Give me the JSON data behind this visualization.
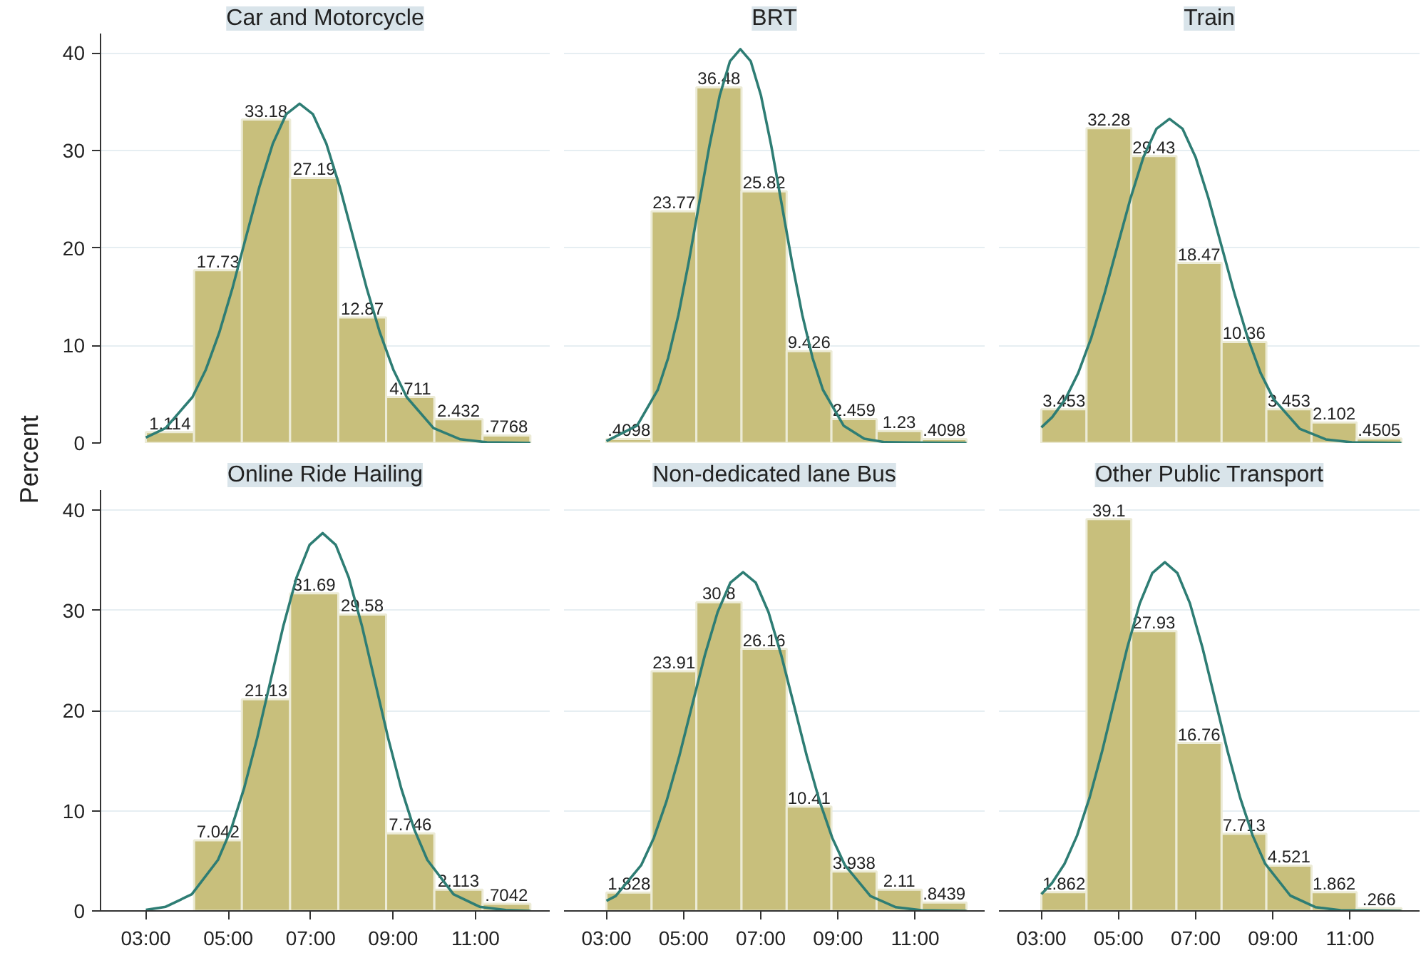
{
  "chart_data": [
    {
      "type": "histogram",
      "title": "Car and Motorcycle",
      "ylabel": "Percent",
      "bins": [
        3,
        4.17,
        5.33,
        6.5,
        7.67,
        8.83,
        10,
        11.17,
        12.33
      ],
      "values": [
        1.114,
        17.73,
        33.18,
        27.19,
        12.87,
        4.711,
        2.432,
        0.7768
      ],
      "value_labels": [
        "1.114",
        "17.73",
        "33.18",
        "27.19",
        "12.87",
        "4.711",
        "2.432",
        ".7768"
      ],
      "color": "#c8bf7c",
      "series": [
        {
          "type": "line",
          "color": "#2e7d74",
          "x": [
            3.0,
            3.48,
            4.13,
            4.455,
            4.78,
            5.105,
            5.43,
            5.755,
            6.08,
            6.405,
            6.73,
            7.055,
            7.38,
            7.705,
            8.03,
            8.355,
            8.68,
            9.005,
            9.33,
            9.98,
            10.63,
            11.28,
            12.33
          ],
          "values": [
            0.56,
            1.53,
            4.7,
            7.52,
            11.31,
            15.94,
            21.12,
            26.27,
            30.69,
            33.72,
            34.8,
            33.72,
            30.69,
            26.27,
            21.12,
            15.94,
            11.31,
            7.52,
            4.7,
            1.53,
            0.38,
            0.07,
            0
          ]
        }
      ],
      "xlim": [
        1.9,
        12.8
      ],
      "ylim": [
        0,
        42
      ],
      "yticks": [
        0,
        10,
        20,
        30,
        40
      ],
      "grid": "y",
      "tick_labels": "y"
    },
    {
      "type": "histogram",
      "title": "BRT",
      "bins": [
        3,
        4.17,
        5.33,
        6.5,
        7.67,
        8.83,
        10,
        11.17,
        12.33
      ],
      "values": [
        0.4098,
        23.77,
        36.48,
        25.82,
        9.426,
        2.459,
        1.23,
        0.4098
      ],
      "value_labels": [
        ".4098",
        "23.77",
        "36.48",
        "25.82",
        "9.426",
        "2.459",
        "1.23",
        ".4098"
      ],
      "color": "#c8bf7c",
      "series": [
        {
          "type": "line",
          "color": "#2e7d74",
          "x": [
            3.0,
            3.795,
            4.33,
            4.6,
            4.865,
            5.13,
            5.4,
            5.67,
            5.935,
            6.2,
            6.47,
            6.74,
            7.005,
            7.27,
            7.54,
            7.81,
            8.075,
            8.34,
            8.61,
            9.145,
            9.68,
            10.22,
            12.33
          ],
          "values": [
            0.2,
            1.78,
            5.45,
            8.73,
            13.13,
            18.5,
            24.52,
            30.5,
            35.63,
            39.15,
            40.4,
            39.15,
            35.63,
            30.5,
            24.52,
            18.5,
            13.13,
            8.73,
            5.45,
            1.78,
            0.44,
            0.08,
            0
          ]
        }
      ],
      "xlim": [
        1.9,
        12.8
      ],
      "yticks": [
        0,
        10,
        20,
        30,
        40
      ],
      "grid": "y",
      "tick_labels": false
    },
    {
      "type": "histogram",
      "title": "Train",
      "bins": [
        3,
        4.17,
        5.33,
        6.5,
        7.67,
        8.83,
        10,
        11.17,
        12.33
      ],
      "values": [
        3.453,
        32.28,
        29.43,
        18.47,
        10.36,
        3.453,
        2.102,
        0.4505
      ],
      "value_labels": [
        "3.453",
        "32.28",
        "29.43",
        "18.47",
        "10.36",
        "3.453",
        "2.102",
        ".4505"
      ],
      "color": "#c8bf7c",
      "series": [
        {
          "type": "line",
          "color": "#2e7d74",
          "x": [
            3.0,
            3.28,
            3.62,
            3.955,
            4.295,
            4.63,
            4.97,
            5.31,
            5.645,
            5.98,
            6.32,
            6.66,
            6.995,
            7.33,
            7.67,
            8.01,
            8.345,
            8.68,
            9.02,
            9.695,
            10.37,
            11.045,
            12.33
          ],
          "values": [
            1.6,
            2.64,
            4.49,
            7.18,
            10.81,
            15.23,
            20.18,
            25.1,
            29.33,
            32.22,
            33.25,
            32.22,
            29.33,
            25.1,
            20.18,
            15.23,
            10.81,
            7.18,
            4.49,
            1.46,
            0.37,
            0.07,
            0
          ]
        }
      ],
      "xlim": [
        1.9,
        12.8
      ],
      "yticks": [
        0,
        10,
        20,
        30,
        40
      ],
      "grid": "y",
      "tick_labels": false
    },
    {
      "type": "histogram",
      "title": "Online Ride Hailing",
      "bins": [
        4.17,
        5.33,
        6.5,
        7.67,
        8.83,
        10,
        11.17,
        12.33
      ],
      "values": [
        7.042,
        21.13,
        31.69,
        29.58,
        7.746,
        2.113,
        0.7042
      ],
      "value_labels": [
        "7.042",
        "21.13",
        "31.69",
        "29.58",
        "7.746",
        "2.113",
        ".7042"
      ],
      "color": "#c8bf7c",
      "series": [
        {
          "type": "line",
          "color": "#2e7d74",
          "x": [
            3.0,
            3.48,
            4.115,
            4.75,
            5.0675,
            5.385,
            5.7025,
            6.02,
            6.3375,
            6.655,
            6.9725,
            7.29,
            7.6075,
            7.925,
            8.2425,
            8.56,
            8.8775,
            9.195,
            9.5125,
            9.83,
            10.465,
            11.1,
            11.735,
            12.33
          ],
          "values": [
            0.1,
            0.41,
            1.66,
            5.09,
            8.14,
            12.25,
            17.27,
            22.88,
            28.46,
            33.25,
            36.53,
            37.7,
            36.53,
            33.25,
            28.46,
            22.88,
            17.27,
            12.25,
            8.14,
            5.09,
            1.66,
            0.41,
            0.08,
            0
          ]
        }
      ],
      "xlim": [
        1.9,
        12.8
      ],
      "ylim": [
        0,
        42
      ],
      "xticks": [
        {
          "value": 3,
          "label": "03:00"
        },
        {
          "value": 5,
          "label": "05:00"
        },
        {
          "value": 7,
          "label": "07:00"
        },
        {
          "value": 9,
          "label": "09:00"
        },
        {
          "value": 11,
          "label": "11:00"
        }
      ],
      "yticks": [
        0,
        10,
        20,
        30,
        40
      ],
      "grid": "y"
    },
    {
      "type": "histogram",
      "title": "Non-dedicated lane Bus",
      "bins": [
        3,
        4.17,
        5.33,
        6.5,
        7.67,
        8.83,
        10,
        11.17,
        12.33
      ],
      "values": [
        1.828,
        23.91,
        30.8,
        26.16,
        10.41,
        3.938,
        2.11,
        0.8439
      ],
      "value_labels": [
        "1.828",
        "23.91",
        "30.8",
        "26.16",
        "10.41",
        "3.938",
        "2.11",
        ".8439"
      ],
      "color": "#c8bf7c",
      "series": [
        {
          "type": "line",
          "color": "#2e7d74",
          "x": [
            3.0,
            3.24,
            3.9,
            4.23,
            4.56,
            4.89,
            5.22,
            5.55,
            5.88,
            6.21,
            6.54,
            6.87,
            7.2,
            7.53,
            7.86,
            8.19,
            8.52,
            8.85,
            9.18,
            9.84,
            10.5,
            11.16,
            12.33
          ],
          "values": [
            1.0,
            1.49,
            4.56,
            7.3,
            10.99,
            15.48,
            20.52,
            25.52,
            29.81,
            32.75,
            33.8,
            32.75,
            29.81,
            25.52,
            20.52,
            15.48,
            10.99,
            7.3,
            4.56,
            1.49,
            0.37,
            0.07,
            0
          ]
        }
      ],
      "xlim": [
        1.9,
        12.8
      ],
      "xticks": [
        {
          "value": 3,
          "label": "03:00"
        },
        {
          "value": 5,
          "label": "05:00"
        },
        {
          "value": 7,
          "label": "07:00"
        },
        {
          "value": 9,
          "label": "09:00"
        },
        {
          "value": 11,
          "label": "11:00"
        }
      ],
      "yticks": [
        0,
        10,
        20,
        30,
        40
      ],
      "grid": "y",
      "tick_labels": "x"
    },
    {
      "type": "histogram",
      "title": "Other Public Transport",
      "bins": [
        3,
        4.17,
        5.33,
        6.5,
        7.67,
        8.83,
        10,
        11.17,
        12.33
      ],
      "values": [
        1.862,
        39.1,
        27.93,
        16.76,
        7.713,
        4.521,
        1.862,
        0.266
      ],
      "value_labels": [
        "1.862",
        "39.1",
        "27.93",
        "16.76",
        "7.713",
        "4.521",
        "1.862",
        ".266"
      ],
      "color": "#c8bf7c",
      "series": [
        {
          "type": "line",
          "color": "#2e7d74",
          "x": [
            3.0,
            3.275,
            3.6,
            3.925,
            4.25,
            4.575,
            4.9,
            5.225,
            5.55,
            5.875,
            6.2,
            6.525,
            6.85,
            7.175,
            7.5,
            7.825,
            8.15,
            8.475,
            8.8,
            9.45,
            10.1,
            10.75,
            12.33
          ],
          "values": [
            1.68,
            2.78,
            4.7,
            7.52,
            11.31,
            15.94,
            21.12,
            26.27,
            30.69,
            33.72,
            34.8,
            33.72,
            30.69,
            26.27,
            21.12,
            15.94,
            11.31,
            7.52,
            4.7,
            1.53,
            0.38,
            0.07,
            0
          ]
        }
      ],
      "xlim": [
        1.9,
        12.8
      ],
      "xticks": [
        {
          "value": 3,
          "label": "03:00"
        },
        {
          "value": 5,
          "label": "05:00"
        },
        {
          "value": 7,
          "label": "07:00"
        },
        {
          "value": 9,
          "label": "09:00"
        },
        {
          "value": 11,
          "label": "11:00"
        }
      ],
      "yticks": [
        0,
        10,
        20,
        30,
        40
      ],
      "grid": "y",
      "tick_labels": "x"
    }
  ]
}
